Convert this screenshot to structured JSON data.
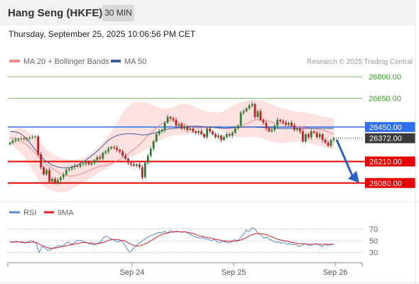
{
  "header": {
    "title": "Hang Seng (HKFE)",
    "timeframe": "30 MIN"
  },
  "timestamp": "Thursday, September 25, 2025 10:06:56 PM CET",
  "legend": {
    "bb": "MA 20 + Bollinger Bands",
    "ma50": "MA 50",
    "copyright": "Research © 2025 Trading Central",
    "rsi": "RSI",
    "rsi_ma": "9MA"
  },
  "colors": {
    "resistance": "#7dc36b",
    "support": "#e60000",
    "current": "#3a3a3a",
    "pivot": "#2e6ff0",
    "ma50": "#3c5e9e",
    "ma20": "#f08a8a",
    "band_fill": "#fde0e0",
    "candle_up": "#2f7d32",
    "candle_down": "#c42121",
    "rsi_line": "#5b87d6",
    "rsi_ma_line": "#e02020"
  },
  "chart_data": [
    {
      "type": "candlestick",
      "title": "Hang Seng (HKFE)",
      "x_ticks": [
        "Sep 24",
        "Sep 25",
        "Sep 26"
      ],
      "ylim": [
        25960,
        26850
      ],
      "levels": [
        {
          "value": 26800.0,
          "label": "26800.00",
          "kind": "resistance"
        },
        {
          "value": 26650.0,
          "label": "26650.00",
          "kind": "resistance"
        },
        {
          "value": 26450.0,
          "label": "26450.00",
          "kind": "pivot"
        },
        {
          "value": 26372.0,
          "label": "26372.00",
          "kind": "current"
        },
        {
          "value": 26210.0,
          "label": "26210.00",
          "kind": "support"
        },
        {
          "value": 26060.0,
          "label": "26060.00",
          "kind": "support"
        }
      ],
      "projection": {
        "from": 26362,
        "to": 26070
      },
      "close": [
        26340,
        26355,
        26362,
        26368,
        26370,
        26365,
        26372,
        26375,
        26380,
        26385,
        26260,
        26170,
        26120,
        26150,
        26070,
        26090,
        26060,
        26080,
        26100,
        26120,
        26150,
        26160,
        26170,
        26180,
        26175,
        26190,
        26195,
        26205,
        26190,
        26200,
        26220,
        26240,
        26230,
        26270,
        26280,
        26300,
        26310,
        26305,
        26290,
        26280,
        26250,
        26230,
        26200,
        26190,
        26180,
        26190,
        26170,
        26100,
        26200,
        26250,
        26300,
        26350,
        26400,
        26420,
        26430,
        26480,
        26520,
        26510,
        26500,
        26460,
        26470,
        26440,
        26450,
        26430,
        26440,
        26420,
        26410,
        26420,
        26400,
        26380,
        26440,
        26420,
        26400,
        26380,
        26390,
        26360,
        26380,
        26400,
        26390,
        26410,
        26440,
        26460,
        26550,
        26560,
        26580,
        26600,
        26610,
        26520,
        26560,
        26500,
        26480,
        26440,
        26420,
        26430,
        26460,
        26500,
        26490,
        26480,
        26470,
        26480,
        26460,
        26430,
        26440,
        26420,
        26350,
        26400,
        26380,
        26420,
        26410,
        26380,
        26400,
        26360,
        26340,
        26320,
        26360,
        26372
      ],
      "ma20": [
        26375,
        26372,
        26365,
        26355,
        26345,
        26330,
        26310,
        26290,
        26265,
        26240,
        26215,
        26195,
        26180,
        26165,
        26150,
        26135,
        26122,
        26115,
        26110,
        26108,
        26110,
        26115,
        26122,
        26130,
        26140,
        26150,
        26160,
        26170,
        26175,
        26180,
        26185,
        26190,
        26200,
        26210,
        26222,
        26235,
        26250,
        26265,
        26285,
        26300,
        26320,
        26342,
        26365,
        26390,
        26410,
        26430,
        26450,
        26470,
        26480,
        26490,
        26495,
        26492,
        26487,
        26480,
        26472,
        26462,
        26455,
        26450,
        26446,
        26444,
        26445,
        26447,
        26448,
        26447,
        26445,
        26443,
        26441,
        26440,
        26440,
        26442,
        26445,
        26450,
        26457,
        26465,
        26475,
        26485,
        26495,
        26500,
        26502,
        26500,
        26495,
        26488,
        26482,
        26478,
        26474,
        26472,
        26468,
        26462,
        26458,
        26455,
        26450,
        26448,
        26446,
        26444,
        26440,
        26438,
        26435,
        26430,
        26425,
        26418,
        26410,
        26400
      ],
      "ma50": [
        26420,
        26418,
        26416,
        26410,
        26400,
        26385,
        26365,
        26342,
        26318,
        26292,
        26268,
        26245,
        26225,
        26210,
        26197,
        26186,
        26178,
        26172,
        26168,
        26166,
        26166,
        26168,
        26172,
        26178,
        26186,
        26196,
        26208,
        26220,
        26235,
        26250,
        26265,
        26282,
        26300,
        26320,
        26340,
        26358,
        26372,
        26382,
        26390,
        26396,
        26400,
        26402,
        26403,
        26403,
        26402,
        26400,
        26397,
        26395,
        26395,
        26398,
        26402,
        26407,
        26412,
        26418,
        26424,
        26430,
        26435,
        26438,
        26440,
        26442,
        26444,
        26447,
        26450,
        26452,
        26454,
        26455,
        26455,
        26455,
        26454,
        26452,
        26450,
        26448,
        26446,
        26445,
        26444,
        26443,
        26442,
        26442,
        26443,
        26445,
        26447,
        26448,
        26449,
        26450,
        26450,
        26450,
        26450,
        26449,
        26448,
        26447,
        26446,
        26445,
        26444,
        26443,
        26442,
        26441,
        26440,
        26440,
        26440,
        26440,
        26440,
        26440,
        26440,
        26440,
        26440,
        26440,
        26440,
        26440,
        26440,
        26440,
        26440,
        26440,
        26440,
        26440,
        26440,
        26440
      ],
      "band_upper": [
        26420,
        26430,
        26440,
        26445,
        26440,
        26420,
        26400,
        26380,
        26355,
        26330,
        26300,
        26280,
        26265,
        26250,
        26240,
        26230,
        26225,
        26222,
        26222,
        26225,
        26230,
        26240,
        26255,
        26270,
        26290,
        26315,
        26340,
        26370,
        26400,
        26440,
        26480,
        26520,
        26560,
        26590,
        26610,
        26620,
        26625,
        26625,
        26620,
        26615,
        26605,
        26595,
        26585,
        26580,
        26580,
        26582,
        26590,
        26600,
        26610,
        26615,
        26610,
        26600,
        26590,
        26580,
        26570,
        26560,
        26555,
        26552,
        26550,
        26552,
        26560,
        26575,
        26590,
        26605,
        26615,
        26625,
        26630,
        26635,
        26638,
        26640,
        26638,
        26632,
        26625,
        26615,
        26605,
        26595,
        26585,
        26578,
        26570,
        26565,
        26560,
        26558,
        26555,
        26550,
        26545,
        26540,
        26535,
        26530,
        26525,
        26520,
        26515,
        26510
      ],
      "band_lower": [
        26330,
        26315,
        26295,
        26270,
        26240,
        26200,
        26160,
        26120,
        26080,
        26050,
        26030,
        26015,
        26005,
        26000,
        25995,
        25995,
        26000,
        26010,
        26025,
        26040,
        26055,
        26070,
        26085,
        26100,
        26115,
        26130,
        26145,
        26160,
        26175,
        26190,
        26200,
        26210,
        26220,
        26230,
        26240,
        26250,
        26262,
        26275,
        26290,
        26305,
        26322,
        26340,
        26355,
        26368,
        26378,
        26385,
        26390,
        26393,
        26395,
        26397,
        26400,
        26403,
        26407,
        26412,
        26420,
        26430,
        26440,
        26445,
        26440,
        26430,
        26420,
        26408,
        26395,
        26385,
        26380,
        26378,
        26378,
        26380,
        26382,
        26382,
        26378,
        26370,
        26360,
        26350,
        26345,
        26342,
        26340,
        26340,
        26342,
        26345,
        26348,
        26350,
        26348,
        26345,
        26340,
        26332,
        26325,
        26318,
        26312,
        26305,
        26300,
        26298
      ]
    },
    {
      "type": "line",
      "title": "RSI",
      "ylim": [
        20,
        80
      ],
      "y_ticks": [
        "70",
        "50",
        "30"
      ],
      "series": [
        {
          "name": "RSI",
          "values": [
            48,
            47,
            49,
            48,
            47,
            46,
            48,
            50,
            49,
            45,
            30,
            40,
            38,
            33,
            35,
            38,
            40,
            42,
            40,
            45,
            48,
            44,
            46,
            50,
            51,
            49,
            47,
            45,
            44,
            43,
            45,
            48,
            55,
            58,
            55,
            52,
            50,
            48,
            50,
            45,
            38,
            30,
            35,
            40,
            45,
            48,
            52,
            55,
            58,
            60,
            62,
            64,
            63,
            66,
            63,
            67,
            64,
            66,
            65,
            64,
            65,
            63,
            60,
            58,
            56,
            54,
            55,
            53,
            52,
            50,
            52,
            48,
            47,
            49,
            48,
            46,
            48,
            52,
            50,
            55,
            60,
            68,
            65,
            72,
            70,
            63,
            60,
            54,
            56,
            52,
            50,
            47,
            48,
            46,
            47,
            44,
            45,
            43,
            44,
            40,
            42,
            45,
            43,
            42,
            44,
            45,
            43,
            40,
            44,
            42,
            43,
            44
          ]
        },
        {
          "name": "9MA",
          "values": [
            48,
            48,
            48,
            48,
            48,
            47,
            47,
            47,
            48,
            47,
            44,
            42,
            40,
            38,
            37,
            37,
            38,
            39,
            40,
            41,
            42,
            43,
            44,
            45,
            46,
            47,
            47,
            46,
            46,
            45,
            45,
            46,
            47,
            49,
            51,
            52,
            52,
            52,
            51,
            50,
            48,
            45,
            43,
            41,
            41,
            42,
            44,
            46,
            49,
            52,
            55,
            58,
            60,
            62,
            63,
            64,
            65,
            65,
            65,
            65,
            65,
            64,
            63,
            62,
            60,
            58,
            57,
            56,
            55,
            54,
            53,
            52,
            51,
            50,
            49,
            49,
            49,
            49,
            50,
            51,
            53,
            55,
            58,
            60,
            62,
            62,
            62,
            61,
            60,
            58,
            56,
            54,
            52,
            51,
            50,
            49,
            48,
            47,
            46,
            45,
            45,
            45,
            44,
            44,
            44,
            44,
            44,
            44,
            44,
            44,
            44,
            44
          ]
        }
      ]
    }
  ]
}
